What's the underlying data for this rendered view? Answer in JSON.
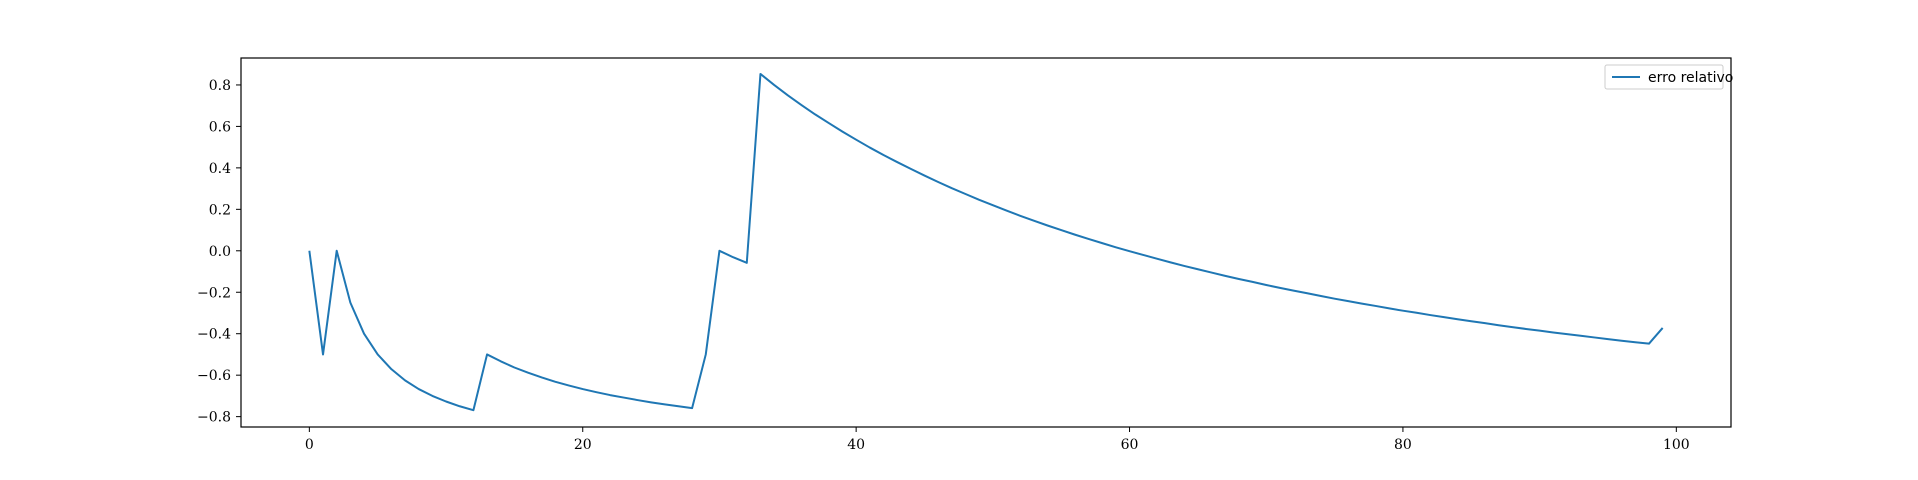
{
  "chart_data": {
    "type": "line",
    "title": "",
    "xlabel": "",
    "ylabel": "",
    "xlim": [
      -5,
      104
    ],
    "ylim": [
      -0.85,
      0.93
    ],
    "xticks": [
      0,
      20,
      40,
      60,
      80,
      100
    ],
    "yticks": [
      -0.8,
      -0.6,
      -0.4,
      -0.2,
      0.0,
      0.2,
      0.4,
      0.6,
      0.8
    ],
    "xtick_labels": [
      "0",
      "20",
      "40",
      "60",
      "80",
      "100"
    ],
    "ytick_labels": [
      "−0.8",
      "−0.6",
      "−0.4",
      "−0.2",
      "0.0",
      "0.2",
      "0.4",
      "0.6",
      "0.8"
    ],
    "grid": false,
    "legend": {
      "position": "top-right",
      "entries": [
        "erro relativo"
      ]
    },
    "colors": {
      "series": "#1f77b4",
      "axes": "#000000"
    },
    "series": [
      {
        "name": "erro relativo",
        "x": [
          0,
          1,
          2,
          3,
          4,
          5,
          6,
          7,
          8,
          9,
          10,
          11,
          12,
          13,
          14,
          15,
          16,
          17,
          18,
          19,
          20,
          21,
          22,
          23,
          24,
          25,
          26,
          27,
          28,
          29,
          30,
          31,
          32,
          33,
          34,
          35,
          36,
          37,
          38,
          39,
          40,
          41,
          42,
          43,
          44,
          45,
          46,
          47,
          48,
          49,
          50,
          51,
          52,
          53,
          54,
          55,
          56,
          57,
          58,
          59,
          60,
          61,
          62,
          63,
          64,
          65,
          66,
          67,
          68,
          69,
          70,
          71,
          72,
          73,
          74,
          75,
          76,
          77,
          78,
          79,
          80,
          81,
          82,
          83,
          84,
          85,
          86,
          87,
          88,
          89,
          90,
          91,
          92,
          93,
          94,
          95,
          96,
          97,
          98,
          99
        ],
        "values": [
          0.0,
          -0.5,
          0.0,
          -0.25,
          -0.4,
          -0.5,
          -0.571,
          -0.625,
          -0.667,
          -0.7,
          -0.727,
          -0.75,
          -0.769,
          -0.5,
          -0.533,
          -0.563,
          -0.588,
          -0.611,
          -0.632,
          -0.65,
          -0.667,
          -0.682,
          -0.696,
          -0.708,
          -0.72,
          -0.731,
          -0.741,
          -0.75,
          -0.759,
          -0.5,
          0.0,
          -0.031,
          -0.058,
          0.853,
          0.8,
          0.75,
          0.703,
          0.658,
          0.616,
          0.575,
          0.536,
          0.498,
          0.462,
          0.428,
          0.395,
          0.363,
          0.332,
          0.302,
          0.274,
          0.246,
          0.22,
          0.194,
          0.169,
          0.145,
          0.122,
          0.1,
          0.078,
          0.057,
          0.037,
          0.017,
          -0.002,
          -0.02,
          -0.038,
          -0.056,
          -0.073,
          -0.089,
          -0.105,
          -0.121,
          -0.136,
          -0.15,
          -0.165,
          -0.179,
          -0.192,
          -0.205,
          -0.218,
          -0.231,
          -0.243,
          -0.255,
          -0.266,
          -0.278,
          -0.289,
          -0.299,
          -0.31,
          -0.32,
          -0.33,
          -0.34,
          -0.349,
          -0.359,
          -0.368,
          -0.377,
          -0.385,
          -0.394,
          -0.402,
          -0.41,
          -0.418,
          -0.426,
          -0.434,
          -0.441,
          -0.448,
          -0.372
        ]
      }
    ]
  }
}
